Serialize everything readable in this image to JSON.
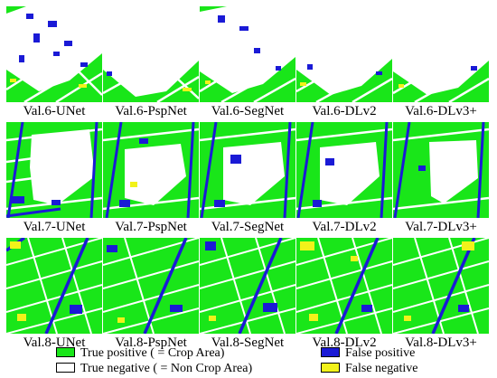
{
  "figure": {
    "rows": [
      {
        "row_label": "Val.6",
        "captions": [
          "Val.6-UNet",
          "Val.6-PspNet",
          "Val.6-SegNet",
          "Val.6-DLv2",
          "Val.6-DLv3+"
        ]
      },
      {
        "row_label": "Val.7",
        "captions": [
          "Val.7-UNet",
          "Val.7-PspNet",
          "Val.7-SegNet",
          "Val.7-DLv2",
          "Val.7-DLv3+"
        ]
      },
      {
        "row_label": "Val.8",
        "captions": [
          "Val.8-UNet",
          "Val.8-PspNet",
          "Val.8-SegNet",
          "Val.8-DLv2",
          "Val.8-DLv3+"
        ]
      }
    ]
  },
  "legend": {
    "items": [
      {
        "key": "tp",
        "label": "True positive ( = Crop Area)",
        "color": "#19e619"
      },
      {
        "key": "tn",
        "label": "True negative ( = Non Crop Area)",
        "color": "#ffffff"
      },
      {
        "key": "fp",
        "label": "False positive",
        "color": "#1a1ad6"
      },
      {
        "key": "fn",
        "label": "False negative",
        "color": "#f2f21a"
      }
    ]
  },
  "colors": {
    "true_positive": "#19e619",
    "true_negative": "#ffffff",
    "false_positive": "#1a1ad6",
    "false_negative": "#f2f21a"
  }
}
